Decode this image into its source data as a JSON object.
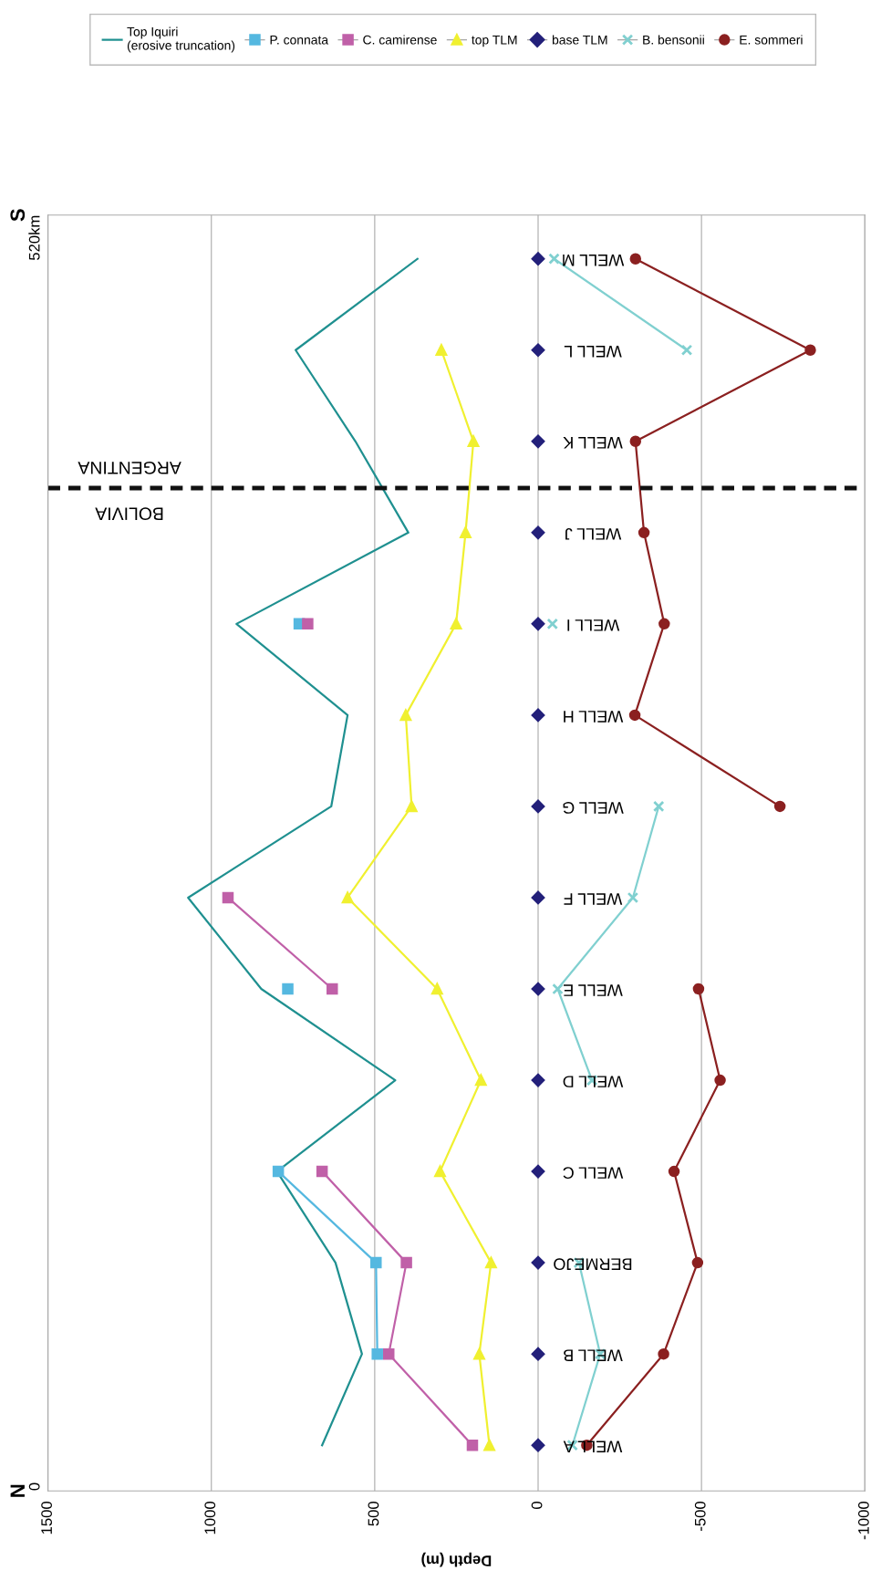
{
  "chart_data": {
    "type": "line",
    "orientation": "horizontal",
    "xlabel": "Depth (m)",
    "categories": [
      "WELL M",
      "WELL L",
      "WELL K",
      "WELL J",
      "WELL I",
      "WELL H",
      "WELL G",
      "WELL F",
      "WELL E",
      "WELL D",
      "WELL C",
      "BERMEJO",
      "WELL B",
      "WELL A"
    ],
    "xlim": [
      1500,
      -1000
    ],
    "xticks": [
      1500,
      1000,
      500,
      0,
      -500,
      -1000
    ],
    "grid": "x",
    "legend": "top",
    "annotations": [
      "N",
      "0",
      "S",
      "520km",
      "BOLIVIA",
      "ARGENTINA"
    ],
    "series": [
      {
        "name": "Top Iquiri\n(erosive truncation)",
        "color": "#1f9090",
        "marker": "none",
        "values": [
          369,
          742,
          559,
          397,
          923,
          583,
          633,
          1071,
          847,
          437,
          799,
          620,
          539,
          661
        ]
      },
      {
        "name": "P. connata",
        "color": "#55b8e0",
        "marker": "square",
        "values": [
          null,
          null,
          null,
          null,
          731,
          null,
          null,
          null,
          766,
          null,
          795,
          496,
          492,
          null
        ]
      },
      {
        "name": "C. camirense",
        "color": "#c060a8",
        "marker": "square",
        "values": [
          null,
          null,
          null,
          null,
          705,
          null,
          null,
          949,
          630,
          null,
          661,
          403,
          457,
          201
        ]
      },
      {
        "name": "top TLM",
        "color": "#f0f030",
        "marker": "triangle",
        "values": [
          null,
          296,
          198,
          222,
          251,
          405,
          387,
          583,
          309,
          175,
          300,
          144,
          180,
          149
        ]
      },
      {
        "name": "base TLM",
        "type": "scatter",
        "color": "#23207a",
        "marker": "diamond",
        "values": [
          0,
          0,
          0,
          0,
          0,
          0,
          0,
          0,
          0,
          0,
          0,
          0,
          0,
          0
        ]
      },
      {
        "name": "B. bensonii",
        "color": "#80d0d0",
        "marker": "cross",
        "values": [
          -49,
          -455,
          null,
          null,
          -44,
          null,
          -369,
          -290,
          -60,
          -165,
          null,
          -125,
          -190,
          -105
        ]
      },
      {
        "name": "E. sommeri",
        "color": "#8b2020",
        "marker": "circle",
        "values": [
          -298,
          -833,
          -298,
          -324,
          -386,
          -296,
          -740,
          null,
          -491,
          -557,
          -416,
          -488,
          -384,
          -149
        ]
      }
    ]
  }
}
